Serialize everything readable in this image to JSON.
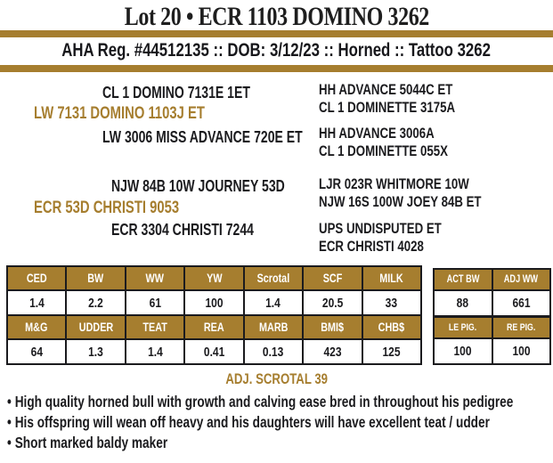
{
  "colors": {
    "gold": "#A67E2F",
    "ink": "#1B1B1E"
  },
  "header": {
    "title": "Lot 20 • ECR 1103 DOMINO 3262",
    "registration": "AHA Reg. #44512135 :: DOB: 3/12/23 :: Horned :: Tattoo 3262"
  },
  "pedigree": {
    "sire": {
      "name": "LW 7131 DOMINO 1103J ET",
      "sire": "CL 1 DOMINO 7131E 1ET",
      "dam": "LW 3006 MISS ADVANCE 720E ET",
      "ancestors": [
        "HH ADVANCE 5044C ET",
        "CL 1 DOMINETTE 3175A",
        "HH ADVANCE 3006A",
        "CL 1 DOMINETTE 055X"
      ]
    },
    "dam": {
      "name": "ECR 53D CHRISTI 9053",
      "sire": "NJW 84B 10W JOURNEY 53D",
      "dam": "ECR 3304 CHRISTI 7244",
      "ancestors": [
        "LJR 023R WHITMORE 10W",
        "NJW 16S 100W JOEY 84B ET",
        "UPS UNDISPUTED ET",
        "ECR CHRISTI 4028"
      ]
    }
  },
  "epd_table": {
    "header_row_1": [
      "CED",
      "BW",
      "WW",
      "YW",
      "Scrotal",
      "SCF",
      "MILK"
    ],
    "value_row_1": [
      "1.4",
      "2.2",
      "61",
      "100",
      "1.4",
      "20.5",
      "33"
    ],
    "header_row_2": [
      "M&G",
      "UDDER",
      "TEAT",
      "REA",
      "MARB",
      "BMI$",
      "CHB$"
    ],
    "value_row_2": [
      "64",
      "1.3",
      "1.4",
      "0.41",
      "0.13",
      "423",
      "125"
    ]
  },
  "measurements_table": {
    "header_row_1": [
      "ACT BW",
      "ADJ WW"
    ],
    "value_row_1": [
      "88",
      "661"
    ],
    "header_row_2": [
      "LE PIG.",
      "RE PIG."
    ],
    "value_row_2": [
      "100",
      "100"
    ]
  },
  "footer": {
    "adj_scrotal": "ADJ. SCROTAL 39",
    "bullet_char": "•",
    "bullets": [
      "High quality horned bull with growth and calving ease bred in throughout his pedigree",
      "His offspring will wean off heavy and his daughters will have excellent teat / udder",
      "Short marked baldy maker"
    ]
  }
}
